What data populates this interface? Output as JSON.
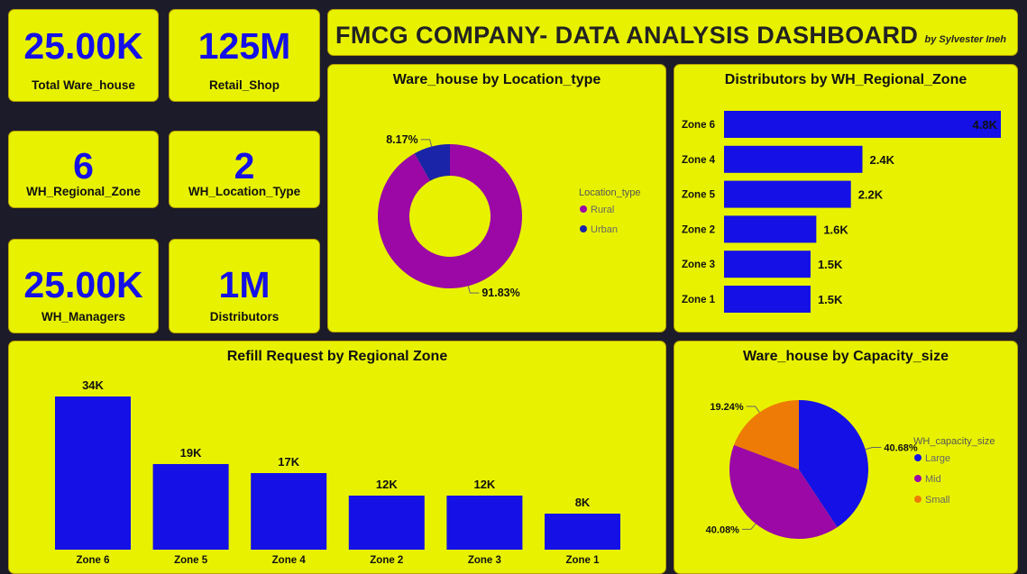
{
  "header": {
    "title": "FMCG COMPANY- DATA ANALYSIS DASHBOARD",
    "author": "by Sylvester Ineh"
  },
  "kpis": [
    {
      "value": "25.00K",
      "label": "Total Ware_house"
    },
    {
      "value": "125M",
      "label": "Retail_Shop"
    },
    {
      "value": "6",
      "label": "WH_Regional_Zone"
    },
    {
      "value": "2",
      "label": "WH_Location_Type"
    },
    {
      "value": "25.00K",
      "label": "WH_Managers"
    },
    {
      "value": "1M",
      "label": "Distributors"
    }
  ],
  "colors": {
    "card_bg": "#e8f200",
    "page_bg": "#1c1b29",
    "bar_blue": "#1410e6",
    "rural_purple": "#9b08a6",
    "urban_navy": "#1a24a8",
    "small_orange": "#ee7b06"
  },
  "chart_data": [
    {
      "id": "location_type",
      "type": "pie",
      "title": "Ware_house by Location_type",
      "legend_title": "Location_type",
      "legend_position": "right",
      "categories": [
        "Rural",
        "Urban"
      ],
      "values": [
        91.83,
        8.17
      ],
      "labels": [
        "91.83%",
        "8.17%"
      ],
      "colors": [
        "#9b08a6",
        "#1a24a8"
      ]
    },
    {
      "id": "distributors_zone",
      "type": "bar",
      "orientation": "horizontal",
      "title": "Distributors by WH_Regional_Zone",
      "categories": [
        "Zone 6",
        "Zone 4",
        "Zone 5",
        "Zone 2",
        "Zone 3",
        "Zone 1"
      ],
      "values": [
        4800,
        2400,
        2200,
        1600,
        1500,
        1500
      ],
      "labels": [
        "4.8K",
        "2.4K",
        "2.2K",
        "1.6K",
        "1.5K",
        "1.5K"
      ],
      "color": "#1410e6"
    },
    {
      "id": "refill_zone",
      "type": "bar",
      "orientation": "vertical",
      "title": "Refill Request by Regional Zone",
      "categories": [
        "Zone 6",
        "Zone 5",
        "Zone 4",
        "Zone 2",
        "Zone 3",
        "Zone 1"
      ],
      "values": [
        34000,
        19000,
        17000,
        12000,
        12000,
        8000
      ],
      "labels": [
        "34K",
        "19K",
        "17K",
        "12K",
        "12K",
        "8K"
      ],
      "color": "#1410e6"
    },
    {
      "id": "capacity_size",
      "type": "pie",
      "title": "Ware_house by Capacity_size",
      "legend_title": "WH_capacity_size",
      "legend_position": "right",
      "categories": [
        "Large",
        "Mid",
        "Small"
      ],
      "values": [
        40.68,
        40.08,
        19.24
      ],
      "labels": [
        "40.68%",
        "40.08%",
        "19.24%"
      ],
      "colors": [
        "#1410e6",
        "#9b08a6",
        "#ee7b06"
      ]
    }
  ]
}
